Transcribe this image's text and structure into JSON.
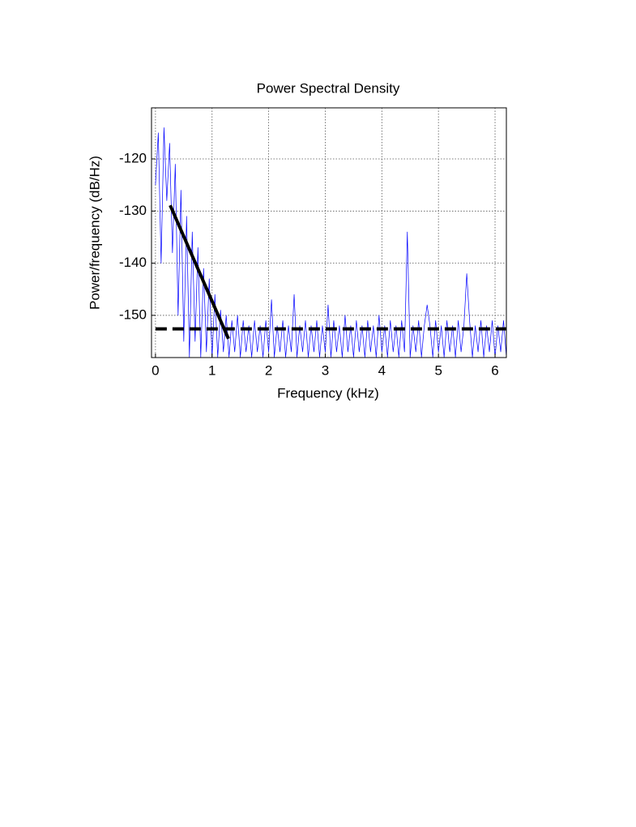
{
  "chart_data": {
    "type": "line",
    "title": "Power Spectral Density",
    "xlabel": "Frequency (kHz)",
    "ylabel": "Power/frequency (dB/Hz)",
    "xlim": [
      -0.07,
      6.2
    ],
    "ylim": [
      -158.1,
      -110.2
    ],
    "xticks": [
      0,
      1,
      2,
      3,
      4,
      5,
      6
    ],
    "yticks": [
      -150,
      -140,
      -130,
      -120
    ],
    "grid": true,
    "series": [
      {
        "color": "#0000ff",
        "linestyle": "solid",
        "x": [
          0,
          0.05,
          0.1,
          0.15,
          0.2,
          0.25,
          0.3,
          0.35,
          0.4,
          0.45,
          0.5,
          0.55,
          0.6,
          0.65,
          0.7,
          0.75,
          0.8,
          0.85,
          0.9,
          0.95,
          1,
          1.05,
          1.1,
          1.15,
          1.2,
          1.25,
          1.3,
          1.35,
          1.4,
          1.45,
          1.5,
          1.55,
          1.6,
          1.65,
          1.7,
          1.75,
          1.8,
          1.85,
          1.9,
          1.95,
          2,
          2.05,
          2.1,
          2.15,
          2.2,
          2.25,
          2.3,
          2.35,
          2.4,
          2.45,
          2.5,
          2.55,
          2.6,
          2.65,
          2.7,
          2.75,
          2.8,
          2.85,
          2.9,
          2.95,
          3,
          3.05,
          3.1,
          3.15,
          3.2,
          3.25,
          3.3,
          3.35,
          3.4,
          3.45,
          3.5,
          3.55,
          3.6,
          3.65,
          3.7,
          3.75,
          3.8,
          3.85,
          3.9,
          3.95,
          4,
          4.05,
          4.1,
          4.15,
          4.2,
          4.25,
          4.3,
          4.35,
          4.4,
          4.45,
          4.5,
          4.55,
          4.6,
          4.65,
          4.7,
          4.75,
          4.8,
          4.85,
          4.9,
          4.95,
          5,
          5.05,
          5.1,
          5.15,
          5.2,
          5.25,
          5.3,
          5.35,
          5.4,
          5.45,
          5.5,
          5.55,
          5.6,
          5.65,
          5.7,
          5.75,
          5.8,
          5.85,
          5.9,
          5.95,
          6,
          6.05,
          6.1,
          6.15,
          6.2
        ],
        "values": [
          -125,
          -115,
          -140,
          -114,
          -128,
          -117,
          -138,
          -121,
          -150,
          -126,
          -155,
          -131,
          -158,
          -134,
          -155,
          -137,
          -158,
          -141,
          -157,
          -143,
          -158,
          -146,
          -158,
          -149,
          -157,
          -150,
          -158,
          -151,
          -157,
          -150,
          -158,
          -151,
          -157,
          -152,
          -158,
          -151,
          -157,
          -152,
          -158,
          -151,
          -157,
          -147,
          -158,
          -152,
          -157,
          -151,
          -158,
          -152,
          -157,
          -146,
          -158,
          -152,
          -157,
          -151,
          -158,
          -152,
          -157,
          -151,
          -158,
          -152,
          -157,
          -148,
          -158,
          -151,
          -157,
          -152,
          -158,
          -150,
          -157,
          -152,
          -158,
          -151,
          -157,
          -152,
          -158,
          -151,
          -157,
          -152,
          -158,
          -150,
          -157,
          -152,
          -158,
          -151,
          -157,
          -152,
          -158,
          -151,
          -157,
          -134,
          -158,
          -152,
          -157,
          -151,
          -158,
          -152,
          -148,
          -152,
          -158,
          -151,
          -157,
          -152,
          -158,
          -151,
          -157,
          -152,
          -158,
          -151,
          -157,
          -152,
          -142,
          -151,
          -158,
          -152,
          -157,
          -151,
          -158,
          -152,
          -157,
          -151,
          -158,
          -152,
          -157,
          -151,
          -158
        ]
      },
      {
        "color": "#000000",
        "linestyle": "solid",
        "x": [
          0.26,
          1.29
        ],
        "values": [
          -128.9,
          -154.5
        ]
      },
      {
        "color": "#000000",
        "linestyle": "dashed",
        "x": [
          0,
          6.2
        ],
        "values": [
          -152.6,
          -152.6
        ]
      }
    ]
  }
}
